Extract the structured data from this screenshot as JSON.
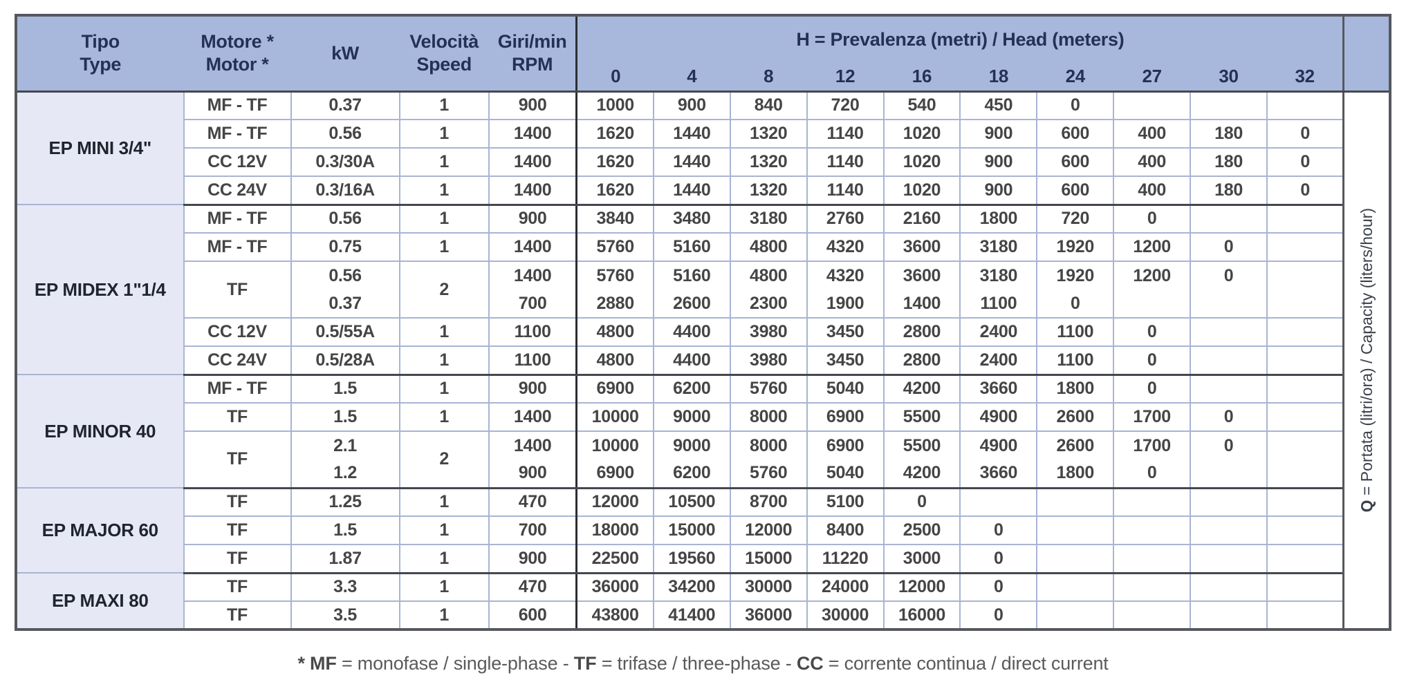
{
  "colors": {
    "header_bg": "#a8b8dc",
    "header_text": "#243156",
    "group_cell_bg": "#e6e9f5",
    "grid_light": "#a9b4d4",
    "grid_dark": "#44474d",
    "body_text": "#454545"
  },
  "header": {
    "tipo_line1": "Tipo",
    "tipo_line2": "Type",
    "motore_line1": "Motore *",
    "motore_line2": "Motor *",
    "kw": "kW",
    "velocita_line1": "Velocità",
    "velocita_line2": "Speed",
    "giri_line1": "Giri/min",
    "giri_line2": "RPM",
    "h_bold": "H",
    "h_rest": " = Prevalenza (metri) / Head (meters)",
    "h_columns": [
      "0",
      "4",
      "8",
      "12",
      "16",
      "18",
      "24",
      "27",
      "30",
      "32"
    ]
  },
  "q_label": {
    "bold": "Q",
    "rest": " = Portata (litri/ora) / Capacity (liters/hour)"
  },
  "groups": [
    {
      "name": "EP MINI 3/4\"",
      "rows": [
        {
          "motor": "MF - TF",
          "kw": "0.37",
          "speed": "1",
          "rpm": "900",
          "values": [
            "1000",
            "900",
            "840",
            "720",
            "540",
            "450",
            "0",
            "",
            "",
            ""
          ]
        },
        {
          "motor": "MF - TF",
          "kw": "0.56",
          "speed": "1",
          "rpm": "1400",
          "values": [
            "1620",
            "1440",
            "1320",
            "1140",
            "1020",
            "900",
            "600",
            "400",
            "180",
            "0"
          ]
        },
        {
          "motor": "CC 12V",
          "kw": "0.3/30A",
          "speed": "1",
          "rpm": "1400",
          "values": [
            "1620",
            "1440",
            "1320",
            "1140",
            "1020",
            "900",
            "600",
            "400",
            "180",
            "0"
          ]
        },
        {
          "motor": "CC 24V",
          "kw": "0.3/16A",
          "speed": "1",
          "rpm": "1400",
          "values": [
            "1620",
            "1440",
            "1320",
            "1140",
            "1020",
            "900",
            "600",
            "400",
            "180",
            "0"
          ]
        }
      ]
    },
    {
      "name": "EP MIDEX 1\"1/4",
      "rows": [
        {
          "motor": "MF - TF",
          "kw": "0.56",
          "speed": "1",
          "rpm": "900",
          "values": [
            "3840",
            "3480",
            "3180",
            "2760",
            "2160",
            "1800",
            "720",
            "0",
            "",
            ""
          ]
        },
        {
          "motor": "MF - TF",
          "kw": "0.75",
          "speed": "1",
          "rpm": "1400",
          "values": [
            "5760",
            "5160",
            "4800",
            "4320",
            "3600",
            "3180",
            "1920",
            "1200",
            "0",
            ""
          ]
        },
        {
          "motor": "TF",
          "kw": "0.56",
          "speed": "2",
          "rpm": "1400",
          "values": [
            "5760",
            "5160",
            "4800",
            "4320",
            "3600",
            "3180",
            "1920",
            "1200",
            "0",
            ""
          ],
          "dual": "start"
        },
        {
          "kw": "0.37",
          "rpm": "700",
          "values": [
            "2880",
            "2600",
            "2300",
            "1900",
            "1400",
            "1100",
            "0",
            "",
            "",
            ""
          ],
          "dual": "end"
        },
        {
          "motor": "CC 12V",
          "kw": "0.5/55A",
          "speed": "1",
          "rpm": "1100",
          "values": [
            "4800",
            "4400",
            "3980",
            "3450",
            "2800",
            "2400",
            "1100",
            "0",
            "",
            ""
          ]
        },
        {
          "motor": "CC 24V",
          "kw": "0.5/28A",
          "speed": "1",
          "rpm": "1100",
          "values": [
            "4800",
            "4400",
            "3980",
            "3450",
            "2800",
            "2400",
            "1100",
            "0",
            "",
            ""
          ]
        }
      ]
    },
    {
      "name": "EP MINOR 40",
      "rows": [
        {
          "motor": "MF - TF",
          "kw": "1.5",
          "speed": "1",
          "rpm": "900",
          "values": [
            "6900",
            "6200",
            "5760",
            "5040",
            "4200",
            "3660",
            "1800",
            "0",
            "",
            ""
          ]
        },
        {
          "motor": "TF",
          "kw": "1.5",
          "speed": "1",
          "rpm": "1400",
          "values": [
            "10000",
            "9000",
            "8000",
            "6900",
            "5500",
            "4900",
            "2600",
            "1700",
            "0",
            ""
          ]
        },
        {
          "motor": "TF",
          "kw": "2.1",
          "speed": "2",
          "rpm": "1400",
          "values": [
            "10000",
            "9000",
            "8000",
            "6900",
            "5500",
            "4900",
            "2600",
            "1700",
            "0",
            ""
          ],
          "dual": "start"
        },
        {
          "kw": "1.2",
          "rpm": "900",
          "values": [
            "6900",
            "6200",
            "5760",
            "5040",
            "4200",
            "3660",
            "1800",
            "0",
            "",
            ""
          ],
          "dual": "end"
        }
      ]
    },
    {
      "name": "EP MAJOR 60",
      "rows": [
        {
          "motor": "TF",
          "kw": "1.25",
          "speed": "1",
          "rpm": "470",
          "values": [
            "12000",
            "10500",
            "8700",
            "5100",
            "0",
            "",
            "",
            "",
            "",
            ""
          ]
        },
        {
          "motor": "TF",
          "kw": "1.5",
          "speed": "1",
          "rpm": "700",
          "values": [
            "18000",
            "15000",
            "12000",
            "8400",
            "2500",
            "0",
            "",
            "",
            "",
            ""
          ]
        },
        {
          "motor": "TF",
          "kw": "1.87",
          "speed": "1",
          "rpm": "900",
          "values": [
            "22500",
            "19560",
            "15000",
            "11220",
            "3000",
            "0",
            "",
            "",
            "",
            ""
          ]
        }
      ]
    },
    {
      "name": "EP MAXI 80",
      "rows": [
        {
          "motor": "TF",
          "kw": "3.3",
          "speed": "1",
          "rpm": "470",
          "values": [
            "36000",
            "34200",
            "30000",
            "24000",
            "12000",
            "0",
            "",
            "",
            "",
            ""
          ]
        },
        {
          "motor": "TF",
          "kw": "3.5",
          "speed": "1",
          "rpm": "600",
          "values": [
            "43800",
            "41400",
            "36000",
            "30000",
            "16000",
            "0",
            "",
            "",
            "",
            ""
          ]
        }
      ]
    }
  ],
  "footnote": {
    "segments": [
      {
        "text": "* MF",
        "bold": true
      },
      {
        "text": " = monofase / single-phase - ",
        "bold": false
      },
      {
        "text": "TF",
        "bold": true
      },
      {
        "text": " = trifase / three-phase - ",
        "bold": false
      },
      {
        "text": "CC",
        "bold": true
      },
      {
        "text": " = corrente continua / direct current",
        "bold": false
      }
    ]
  }
}
